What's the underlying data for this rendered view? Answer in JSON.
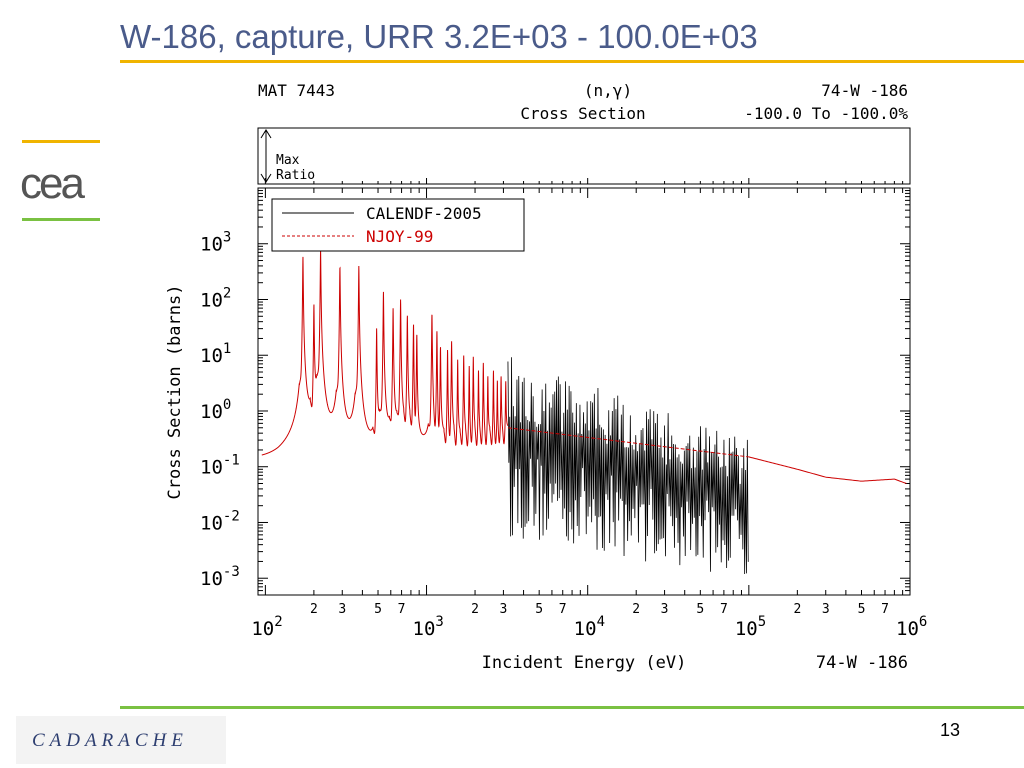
{
  "slide": {
    "title": "W-186, capture, URR 3.2E+03 - 100.0E+03",
    "page_number": "13",
    "footer_logo": "CADARACHE",
    "header_logo": "cea",
    "colors": {
      "title": "#4a5b8a",
      "title_rule": "#f0b400",
      "footer_rule": "#7ac142"
    }
  },
  "chart_data": {
    "type": "line",
    "header": {
      "mat": "MAT 7443",
      "reaction": "(n,γ)",
      "material": "74-W -186",
      "quantity": "Cross Section",
      "range": "-100.0 To -100.0%"
    },
    "ratio_panel": {
      "label_line1": "Max",
      "label_line2": "Ratio"
    },
    "xlabel": "Incident Energy (eV)",
    "xlabel_right": "74-W -186",
    "ylabel": "Cross Section (barns)",
    "x_scale": "log",
    "y_scale": "log",
    "xlim": [
      90,
      1000000
    ],
    "ylim": [
      0.0005,
      10000
    ],
    "x_decade_ticks": [
      {
        "value": 100,
        "base": "10",
        "exp": "2"
      },
      {
        "value": 1000,
        "base": "10",
        "exp": "3"
      },
      {
        "value": 10000,
        "base": "10",
        "exp": "4"
      },
      {
        "value": 100000,
        "base": "10",
        "exp": "5"
      },
      {
        "value": 1000000,
        "base": "10",
        "exp": "6"
      }
    ],
    "x_minor_labels": [
      "2",
      "3",
      "5",
      "7"
    ],
    "y_decade_ticks": [
      {
        "value": 1000,
        "base": "10",
        "exp": "3"
      },
      {
        "value": 100,
        "base": "10",
        "exp": "2"
      },
      {
        "value": 10,
        "base": "10",
        "exp": "1"
      },
      {
        "value": 1,
        "base": "10",
        "exp": "0"
      },
      {
        "value": 0.1,
        "base": "10",
        "exp": "-1"
      },
      {
        "value": 0.01,
        "base": "10",
        "exp": "-2"
      },
      {
        "value": 0.001,
        "base": "10",
        "exp": "-3"
      }
    ],
    "legend_position": "top-left",
    "series": [
      {
        "name": "CALENDF-2005",
        "color": "#000000",
        "style": "solid",
        "x_range": [
          3200,
          100000
        ],
        "fluctuation": {
          "upper_start": 10,
          "upper_end": 0.3,
          "lower_start": 0.005,
          "lower_end": 0.001
        }
      },
      {
        "name": "NJOY-99",
        "color": "#cc0000",
        "style": "dashed",
        "background": [
          {
            "x": 95,
            "y": 0.06
          },
          {
            "x": 120,
            "y": 0.05
          },
          {
            "x": 3200,
            "y": 0.5
          },
          {
            "x": 100000,
            "y": 0.15
          },
          {
            "x": 200000,
            "y": 0.09
          },
          {
            "x": 300000,
            "y": 0.065
          },
          {
            "x": 500000,
            "y": 0.055
          },
          {
            "x": 800000,
            "y": 0.06
          },
          {
            "x": 950000,
            "y": 0.05
          }
        ],
        "resonances": [
          {
            "e": 171,
            "h": 600
          },
          {
            "e": 200,
            "h": 85
          },
          {
            "e": 220,
            "h": 800
          },
          {
            "e": 290,
            "h": 420
          },
          {
            "e": 380,
            "h": 400
          },
          {
            "e": 490,
            "h": 30
          },
          {
            "e": 540,
            "h": 140
          },
          {
            "e": 620,
            "h": 70
          },
          {
            "e": 690,
            "h": 100
          },
          {
            "e": 760,
            "h": 55
          },
          {
            "e": 830,
            "h": 45
          },
          {
            "e": 870,
            "h": 25
          },
          {
            "e": 1080,
            "h": 60
          },
          {
            "e": 1160,
            "h": 30
          },
          {
            "e": 1220,
            "h": 15
          },
          {
            "e": 1350,
            "h": 12
          },
          {
            "e": 1430,
            "h": 18
          },
          {
            "e": 1560,
            "h": 8
          },
          {
            "e": 1700,
            "h": 10
          },
          {
            "e": 1840,
            "h": 6
          },
          {
            "e": 1950,
            "h": 9
          },
          {
            "e": 2100,
            "h": 5
          },
          {
            "e": 2250,
            "h": 7
          },
          {
            "e": 2400,
            "h": 4
          },
          {
            "e": 2600,
            "h": 5
          },
          {
            "e": 2750,
            "h": 3
          },
          {
            "e": 2900,
            "h": 4
          },
          {
            "e": 3100,
            "h": 3
          }
        ]
      }
    ]
  }
}
